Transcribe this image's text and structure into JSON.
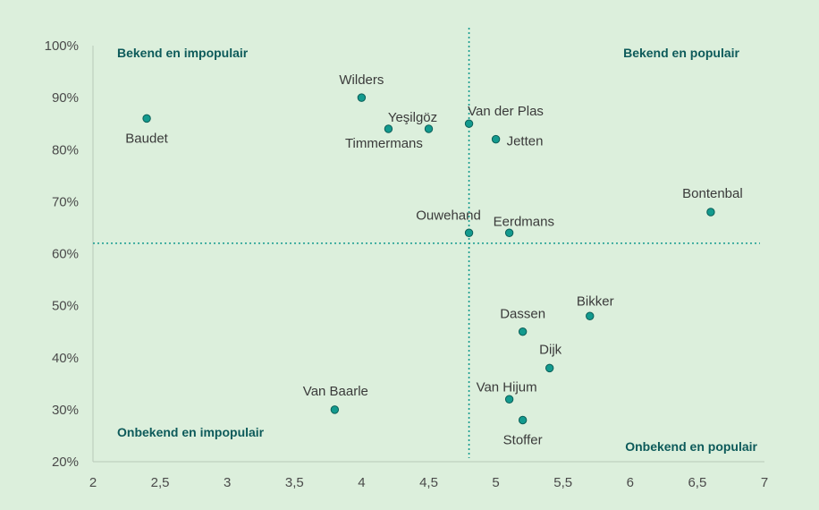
{
  "chart_data": {
    "type": "scatter",
    "title": "",
    "xlabel": "",
    "ylabel": "",
    "xlim": [
      2,
      7
    ],
    "ylim": [
      20,
      100
    ],
    "x_ticks": [
      "2",
      "2,5",
      "3",
      "3,5",
      "4",
      "4,5",
      "5",
      "5,5",
      "6",
      "6,5",
      "7"
    ],
    "y_ticks": [
      "20%",
      "30%",
      "40%",
      "50%",
      "60%",
      "70%",
      "80%",
      "90%",
      "100%"
    ],
    "reference_lines": {
      "x": 4.8,
      "y": 62
    },
    "quadrant_labels": {
      "top_left": "Bekend en impopulair",
      "top_right": "Bekend en populair",
      "bottom_left": "Onbekend en impopulair",
      "bottom_right": "Onbekend en populair"
    },
    "points": [
      {
        "label": "Baudet",
        "x": 2.4,
        "y": 86
      },
      {
        "label": "Wilders",
        "x": 4.0,
        "y": 90
      },
      {
        "label": "Timmermans",
        "x": 4.2,
        "y": 84
      },
      {
        "label": "Yeşilgöz",
        "x": 4.5,
        "y": 84
      },
      {
        "label": "Van der Plas",
        "x": 4.8,
        "y": 85
      },
      {
        "label": "Jetten",
        "x": 5.0,
        "y": 82
      },
      {
        "label": "Bontenbal",
        "x": 6.6,
        "y": 68
      },
      {
        "label": "Ouwehand",
        "x": 4.8,
        "y": 64
      },
      {
        "label": "Eerdmans",
        "x": 5.1,
        "y": 64
      },
      {
        "label": "Bikker",
        "x": 5.7,
        "y": 48
      },
      {
        "label": "Dassen",
        "x": 5.2,
        "y": 45
      },
      {
        "label": "Dijk",
        "x": 5.4,
        "y": 38
      },
      {
        "label": "Van Hijum",
        "x": 5.1,
        "y": 32
      },
      {
        "label": "Van Baarle",
        "x": 3.8,
        "y": 30
      },
      {
        "label": "Stoffer",
        "x": 5.2,
        "y": 28
      }
    ],
    "colors": {
      "point": "#139a8e",
      "reference_line": "#139a8e",
      "quadrant_text": "#0d5a5a",
      "background": "#dcefdc"
    },
    "grid": false
  }
}
